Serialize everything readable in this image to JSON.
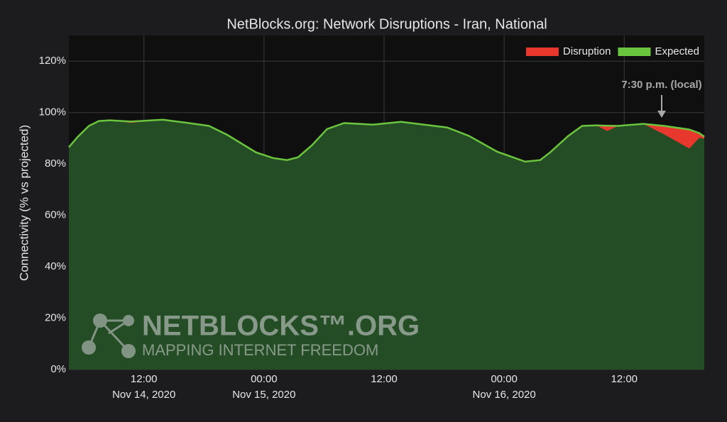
{
  "chart_data": {
    "type": "area",
    "title": "NetBlocks.org: Network Disruptions - Iran, National",
    "y_label": "Connectivity (% vs projected)",
    "annotation": "7:30 p.m. (local)",
    "watermark": {
      "name": "NETBLOCKS™.ORG",
      "tagline": "MAPPING INTERNET FREEDOM"
    },
    "x": [
      4.5,
      5.4,
      6.5,
      7.5,
      8.6,
      10.7,
      13.9,
      16.1,
      18.5,
      20.3,
      23.2,
      24.9,
      26.3,
      27.4,
      28.8,
      30.3,
      32.0,
      34.9,
      37.7,
      42.3,
      44.5,
      47.3,
      50.1,
      51.6,
      52.6,
      54.4,
      55.8,
      57.2,
      58.3,
      59.4,
      61.9,
      64.0,
      66.5,
      67.5,
      68.0
    ],
    "series": [
      {
        "name": "Disruption",
        "color": "#e8372c",
        "values": [
          86.5,
          90.6,
          94.8,
          96.7,
          97.0,
          96.0,
          97.2,
          96.1,
          94.8,
          91.4,
          84.5,
          82.3,
          81.5,
          82.6,
          87.3,
          93.6,
          95.9,
          95.3,
          96.4,
          94.2,
          90.9,
          84.8,
          80.9,
          81.5,
          84.5,
          90.9,
          94.8,
          95.0,
          92.8,
          94.8,
          95.6,
          91.5,
          86.0,
          90.2,
          89.8
        ]
      },
      {
        "name": "Expected",
        "color": "#6bc43e",
        "values": [
          86.5,
          90.6,
          94.8,
          96.7,
          97.0,
          96.5,
          97.2,
          96.1,
          94.8,
          91.4,
          84.5,
          82.3,
          81.5,
          82.6,
          87.3,
          93.6,
          95.9,
          95.3,
          96.4,
          94.2,
          90.9,
          84.8,
          80.9,
          81.5,
          84.5,
          90.9,
          94.8,
          95.0,
          94.9,
          94.8,
          95.6,
          94.8,
          93.4,
          92.0,
          90.6
        ]
      }
    ],
    "xlim": [
      4.5,
      68
    ],
    "xticks": [
      {
        "value": 12,
        "label": "12:00"
      },
      {
        "value": 24,
        "label": "00:00"
      },
      {
        "value": 36,
        "label": "12:00"
      },
      {
        "value": 48,
        "label": "00:00"
      },
      {
        "value": 60,
        "label": "12:00"
      }
    ],
    "x_dates": [
      {
        "value": 12,
        "label": "Nov 14, 2020"
      },
      {
        "value": 24,
        "label": "Nov 15, 2020"
      },
      {
        "value": 48,
        "label": "Nov 16, 2020"
      }
    ],
    "ylim": [
      0,
      130
    ],
    "yticks": [
      {
        "value": 0,
        "label": "0%"
      },
      {
        "value": 20,
        "label": "20%"
      },
      {
        "value": 40,
        "label": "40%"
      },
      {
        "value": 60,
        "label": "60%"
      },
      {
        "value": 80,
        "label": "80%"
      },
      {
        "value": 100,
        "label": "100%"
      },
      {
        "value": 120,
        "label": "120%"
      }
    ],
    "grid": true,
    "legend": "top-right"
  }
}
